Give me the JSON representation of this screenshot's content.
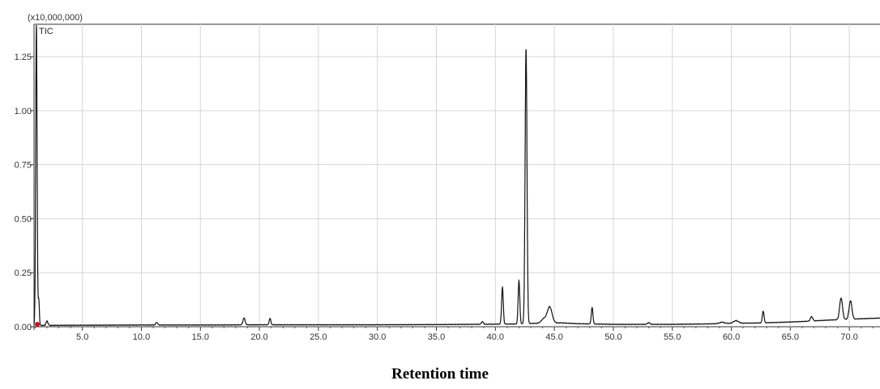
{
  "chart_data": {
    "type": "line",
    "y_multiplier_label": "(x10,000,000)",
    "series_label": "TIC",
    "xlabel": "Retention time",
    "ylabel": "",
    "xlim": [
      0.9,
      72.6
    ],
    "ylim": [
      0,
      1.4
    ],
    "x_tick_values": [
      5,
      10,
      15,
      20,
      25,
      30,
      35,
      40,
      45,
      50,
      55,
      60,
      65,
      70
    ],
    "x_tick_labels": [
      "5.0",
      "10.0",
      "15.0",
      "20.0",
      "25.0",
      "30.0",
      "35.0",
      "40.0",
      "45.0",
      "50.0",
      "55.0",
      "60.0",
      "65.0",
      "70.0"
    ],
    "y_tick_values": [
      0,
      0.25,
      0.5,
      0.75,
      1.0,
      1.25
    ],
    "y_tick_labels": [
      "0.00",
      "0.25",
      "0.50",
      "0.75",
      "1.00",
      "1.25"
    ],
    "grid": true,
    "baseline": [
      [
        0.9,
        0.006
      ],
      [
        5,
        0.007
      ],
      [
        10,
        0.008
      ],
      [
        15,
        0.008
      ],
      [
        20,
        0.009
      ],
      [
        25,
        0.009
      ],
      [
        30,
        0.009
      ],
      [
        35,
        0.01
      ],
      [
        38,
        0.011
      ],
      [
        40,
        0.012
      ],
      [
        42,
        0.013
      ],
      [
        43.5,
        0.016
      ],
      [
        45.5,
        0.018
      ],
      [
        47,
        0.014
      ],
      [
        50,
        0.011
      ],
      [
        55,
        0.011
      ],
      [
        58,
        0.013
      ],
      [
        60,
        0.016
      ],
      [
        62,
        0.017
      ],
      [
        64,
        0.02
      ],
      [
        66,
        0.024
      ],
      [
        68,
        0.03
      ],
      [
        70,
        0.035
      ],
      [
        72.6,
        0.04
      ]
    ],
    "peaks": [
      {
        "rt": 1.1,
        "height": 1.39,
        "width": 0.06
      },
      {
        "rt": 1.3,
        "height": 0.12,
        "width": 0.05
      },
      {
        "rt": 2.0,
        "height": 0.02,
        "width": 0.08
      },
      {
        "rt": 11.3,
        "height": 0.012,
        "width": 0.08
      },
      {
        "rt": 18.7,
        "height": 0.032,
        "width": 0.09
      },
      {
        "rt": 20.9,
        "height": 0.03,
        "width": 0.07
      },
      {
        "rt": 38.9,
        "height": 0.012,
        "width": 0.08
      },
      {
        "rt": 40.6,
        "height": 0.17,
        "width": 0.07
      },
      {
        "rt": 42.0,
        "height": 0.2,
        "width": 0.07
      },
      {
        "rt": 42.6,
        "height": 1.27,
        "width": 0.08
      },
      {
        "rt": 44.1,
        "height": 0.02,
        "width": 0.2
      },
      {
        "rt": 44.6,
        "height": 0.075,
        "width": 0.2
      },
      {
        "rt": 48.2,
        "height": 0.075,
        "width": 0.07
      },
      {
        "rt": 53.0,
        "height": 0.008,
        "width": 0.1
      },
      {
        "rt": 59.2,
        "height": 0.006,
        "width": 0.2
      },
      {
        "rt": 60.4,
        "height": 0.012,
        "width": 0.2
      },
      {
        "rt": 62.7,
        "height": 0.055,
        "width": 0.07
      },
      {
        "rt": 66.8,
        "height": 0.02,
        "width": 0.1
      },
      {
        "rt": 69.3,
        "height": 0.1,
        "width": 0.12
      },
      {
        "rt": 70.1,
        "height": 0.085,
        "width": 0.12
      }
    ]
  }
}
